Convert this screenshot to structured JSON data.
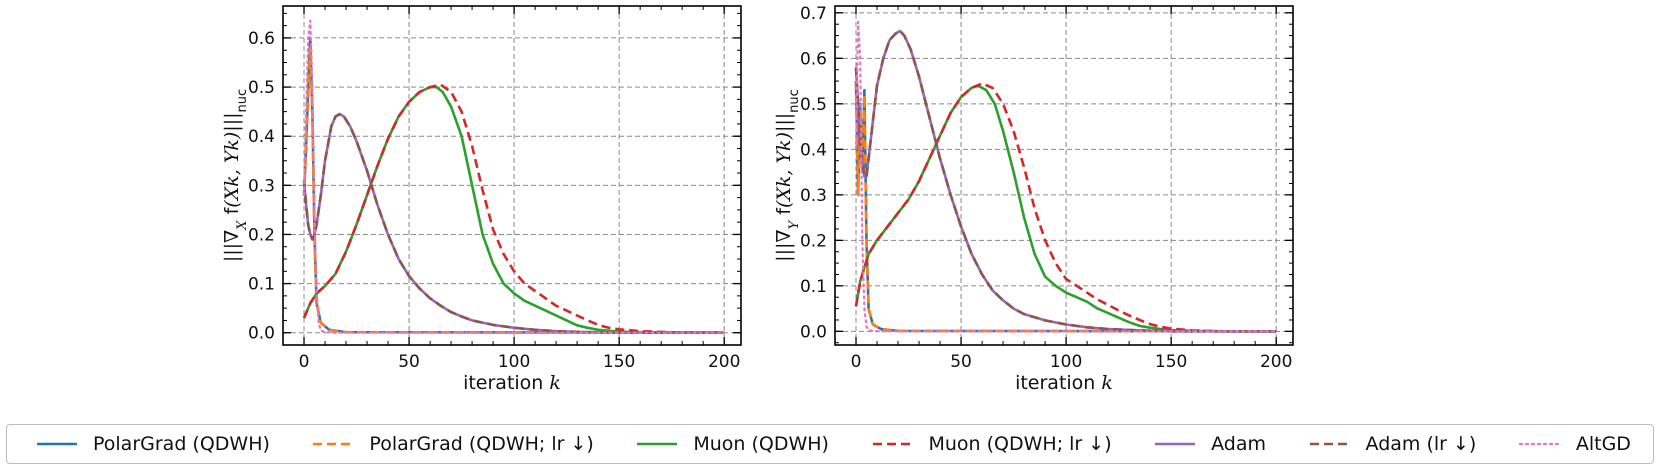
{
  "chart_data": [
    {
      "type": "line",
      "panel": "left",
      "ylabel": "|||∇_X f(X_k, Y_k)|||_nuc",
      "xlabel": "iteration k",
      "xlim": [
        -10,
        208
      ],
      "ylim": [
        -0.025,
        0.665
      ],
      "xticks": [
        0,
        50,
        100,
        150,
        200
      ],
      "yticks": [
        0.0,
        0.1,
        0.2,
        0.3,
        0.4,
        0.5,
        0.6
      ],
      "xtick_labels": [
        "0",
        "50",
        "100",
        "150",
        "200"
      ],
      "ytick_labels": [
        "0.0",
        "0.1",
        "0.2",
        "0.3",
        "0.4",
        "0.5",
        "0.6"
      ],
      "grid": true,
      "series": [
        {
          "name": "PolarGrad (QDWH)",
          "x": [
            0,
            1,
            2,
            3,
            4,
            5,
            6,
            8,
            12,
            20,
            200
          ],
          "y": [
            0.28,
            0.38,
            0.5,
            0.6,
            0.45,
            0.2,
            0.06,
            0.02,
            0.006,
            0.001,
            0.0
          ]
        },
        {
          "name": "PolarGrad (QDWH; lr ↓)",
          "x": [
            0,
            1,
            2,
            3,
            4,
            5,
            6,
            8,
            12,
            20,
            200
          ],
          "y": [
            0.28,
            0.38,
            0.48,
            0.58,
            0.44,
            0.19,
            0.06,
            0.02,
            0.006,
            0.001,
            0.0
          ]
        },
        {
          "name": "Muon (QDWH)",
          "x": [
            0,
            3,
            6,
            10,
            15,
            20,
            25,
            30,
            35,
            40,
            45,
            50,
            55,
            60,
            63,
            66,
            70,
            75,
            80,
            85,
            90,
            95,
            100,
            105,
            110,
            115,
            120,
            125,
            130,
            135,
            140,
            145,
            150,
            160,
            175,
            200
          ],
          "y": [
            0.03,
            0.06,
            0.08,
            0.095,
            0.12,
            0.165,
            0.22,
            0.28,
            0.34,
            0.395,
            0.44,
            0.47,
            0.49,
            0.5,
            0.5,
            0.49,
            0.46,
            0.4,
            0.3,
            0.2,
            0.14,
            0.1,
            0.08,
            0.065,
            0.055,
            0.045,
            0.035,
            0.025,
            0.015,
            0.01,
            0.006,
            0.004,
            0.002,
            0.001,
            0.0,
            0.0
          ]
        },
        {
          "name": "Muon (QDWH; lr ↓)",
          "x": [
            0,
            3,
            6,
            10,
            15,
            20,
            25,
            30,
            35,
            40,
            45,
            50,
            55,
            60,
            65,
            70,
            75,
            80,
            85,
            90,
            95,
            100,
            105,
            110,
            115,
            120,
            125,
            130,
            135,
            140,
            145,
            150,
            160,
            175,
            200
          ],
          "y": [
            0.03,
            0.06,
            0.08,
            0.095,
            0.12,
            0.165,
            0.22,
            0.28,
            0.34,
            0.395,
            0.44,
            0.47,
            0.49,
            0.5,
            0.505,
            0.49,
            0.45,
            0.38,
            0.29,
            0.21,
            0.16,
            0.125,
            0.1,
            0.085,
            0.07,
            0.055,
            0.045,
            0.035,
            0.025,
            0.016,
            0.01,
            0.007,
            0.003,
            0.001,
            0.0
          ]
        },
        {
          "name": "Adam",
          "x": [
            0,
            1,
            2,
            3,
            4,
            5,
            6,
            8,
            10,
            13,
            15,
            17,
            19,
            22,
            25,
            30,
            35,
            40,
            45,
            50,
            55,
            60,
            65,
            70,
            75,
            80,
            90,
            100,
            110,
            120,
            135,
            150,
            200
          ],
          "y": [
            0.31,
            0.26,
            0.22,
            0.2,
            0.19,
            0.2,
            0.22,
            0.28,
            0.35,
            0.42,
            0.44,
            0.445,
            0.44,
            0.42,
            0.39,
            0.33,
            0.26,
            0.2,
            0.15,
            0.115,
            0.09,
            0.07,
            0.055,
            0.042,
            0.033,
            0.025,
            0.016,
            0.01,
            0.006,
            0.003,
            0.001,
            0.0,
            0.0
          ]
        },
        {
          "name": "Adam (lr ↓)",
          "x": [
            0,
            1,
            2,
            3,
            4,
            5,
            6,
            8,
            10,
            13,
            15,
            17,
            19,
            22,
            25,
            30,
            35,
            40,
            45,
            50,
            55,
            60,
            65,
            70,
            75,
            80,
            90,
            100,
            110,
            120,
            135,
            150,
            200
          ],
          "y": [
            0.31,
            0.26,
            0.22,
            0.2,
            0.19,
            0.2,
            0.22,
            0.28,
            0.35,
            0.42,
            0.44,
            0.445,
            0.44,
            0.42,
            0.39,
            0.33,
            0.26,
            0.2,
            0.15,
            0.115,
            0.09,
            0.07,
            0.055,
            0.042,
            0.033,
            0.025,
            0.016,
            0.01,
            0.006,
            0.003,
            0.001,
            0.0,
            0.0
          ]
        },
        {
          "name": "AltGD",
          "x": [
            0,
            1,
            2,
            3,
            4,
            5,
            6,
            7,
            8,
            10,
            15,
            200
          ],
          "y": [
            0.28,
            0.45,
            0.6,
            0.635,
            0.5,
            0.25,
            0.08,
            0.02,
            0.005,
            0.001,
            0.0,
            0.0
          ]
        }
      ]
    },
    {
      "type": "line",
      "panel": "right",
      "ylabel": "|||∇_Y f(X_k, Y_k)|||_nuc",
      "xlabel": "iteration k",
      "xlim": [
        -10,
        208
      ],
      "ylim": [
        -0.03,
        0.715
      ],
      "xticks": [
        0,
        50,
        100,
        150,
        200
      ],
      "yticks": [
        0.0,
        0.1,
        0.2,
        0.3,
        0.4,
        0.5,
        0.6,
        0.7
      ],
      "xtick_labels": [
        "0",
        "50",
        "100",
        "150",
        "200"
      ],
      "ytick_labels": [
        "0.0",
        "0.1",
        "0.2",
        "0.3",
        "0.4",
        "0.5",
        "0.6",
        "0.7"
      ],
      "grid": true,
      "series": [
        {
          "name": "PolarGrad (QDWH)",
          "x": [
            0,
            1,
            2,
            3,
            4,
            5,
            6,
            8,
            12,
            20,
            200
          ],
          "y": [
            0.55,
            0.3,
            0.5,
            0.35,
            0.53,
            0.2,
            0.05,
            0.015,
            0.005,
            0.001,
            0.0
          ]
        },
        {
          "name": "PolarGrad (QDWH; lr ↓)",
          "x": [
            0,
            1,
            2,
            3,
            4,
            5,
            6,
            8,
            12,
            20,
            200
          ],
          "y": [
            0.55,
            0.3,
            0.48,
            0.35,
            0.52,
            0.2,
            0.05,
            0.015,
            0.005,
            0.001,
            0.0
          ]
        },
        {
          "name": "Muon (QDWH)",
          "x": [
            0,
            2,
            4,
            6,
            10,
            15,
            20,
            25,
            30,
            35,
            40,
            45,
            50,
            55,
            58,
            62,
            66,
            70,
            75,
            80,
            85,
            90,
            95,
            100,
            105,
            110,
            115,
            120,
            125,
            130,
            135,
            140,
            145,
            150,
            160,
            175,
            200
          ],
          "y": [
            0.055,
            0.11,
            0.14,
            0.17,
            0.2,
            0.23,
            0.26,
            0.29,
            0.33,
            0.38,
            0.43,
            0.48,
            0.515,
            0.535,
            0.54,
            0.53,
            0.5,
            0.44,
            0.35,
            0.25,
            0.17,
            0.12,
            0.1,
            0.085,
            0.075,
            0.065,
            0.05,
            0.04,
            0.03,
            0.02,
            0.012,
            0.008,
            0.005,
            0.003,
            0.001,
            0.0,
            0.0
          ]
        },
        {
          "name": "Muon (QDWH; lr ↓)",
          "x": [
            0,
            2,
            4,
            6,
            10,
            15,
            20,
            25,
            30,
            35,
            40,
            45,
            50,
            55,
            60,
            65,
            70,
            75,
            80,
            85,
            90,
            95,
            100,
            105,
            110,
            115,
            120,
            125,
            130,
            135,
            140,
            145,
            150,
            160,
            175,
            200
          ],
          "y": [
            0.055,
            0.11,
            0.14,
            0.17,
            0.2,
            0.23,
            0.26,
            0.29,
            0.33,
            0.38,
            0.43,
            0.48,
            0.515,
            0.535,
            0.545,
            0.535,
            0.5,
            0.44,
            0.36,
            0.27,
            0.2,
            0.15,
            0.115,
            0.1,
            0.085,
            0.07,
            0.058,
            0.046,
            0.035,
            0.025,
            0.016,
            0.01,
            0.006,
            0.002,
            0.0,
            0.0
          ]
        },
        {
          "name": "Adam",
          "x": [
            0,
            1,
            2,
            3,
            4,
            5,
            6,
            8,
            10,
            13,
            16,
            19,
            21,
            23,
            26,
            30,
            35,
            40,
            45,
            50,
            55,
            60,
            65,
            70,
            75,
            80,
            90,
            100,
            110,
            120,
            135,
            150,
            200
          ],
          "y": [
            0.58,
            0.5,
            0.42,
            0.37,
            0.34,
            0.34,
            0.38,
            0.46,
            0.54,
            0.6,
            0.64,
            0.655,
            0.66,
            0.65,
            0.62,
            0.56,
            0.47,
            0.38,
            0.3,
            0.23,
            0.17,
            0.125,
            0.09,
            0.068,
            0.05,
            0.038,
            0.024,
            0.015,
            0.009,
            0.005,
            0.002,
            0.0,
            0.0
          ]
        },
        {
          "name": "Adam (lr ↓)",
          "x": [
            0,
            1,
            2,
            3,
            4,
            5,
            6,
            8,
            10,
            13,
            16,
            19,
            21,
            23,
            26,
            30,
            35,
            40,
            45,
            50,
            55,
            60,
            65,
            70,
            75,
            80,
            90,
            100,
            110,
            120,
            135,
            150,
            200
          ],
          "y": [
            0.58,
            0.5,
            0.42,
            0.37,
            0.34,
            0.34,
            0.38,
            0.46,
            0.54,
            0.6,
            0.64,
            0.655,
            0.66,
            0.65,
            0.62,
            0.56,
            0.47,
            0.38,
            0.3,
            0.23,
            0.17,
            0.125,
            0.09,
            0.068,
            0.05,
            0.038,
            0.024,
            0.015,
            0.009,
            0.005,
            0.002,
            0.0,
            0.0
          ]
        },
        {
          "name": "AltGD",
          "x": [
            0,
            1,
            2,
            3,
            4,
            5,
            6,
            8,
            12,
            200
          ],
          "y": [
            0.4,
            0.68,
            0.6,
            0.2,
            0.05,
            0.01,
            0.003,
            0.001,
            0.0,
            0.0
          ]
        }
      ]
    }
  ],
  "legend": [
    {
      "label": "PolarGrad (QDWH)",
      "color": "#1f77b4",
      "style": "solid"
    },
    {
      "label": "PolarGrad (QDWH; lr ↓)",
      "color": "#ff7f0e",
      "style": "dashed"
    },
    {
      "label": "Muon (QDWH)",
      "color": "#2ca02c",
      "style": "solid"
    },
    {
      "label": "Muon (QDWH; lr ↓)",
      "color": "#d62728",
      "style": "dashed"
    },
    {
      "label": "Adam",
      "color": "#9467bd",
      "style": "solid"
    },
    {
      "label": "Adam (lr ↓)",
      "color": "#8c564b",
      "style": "dashed"
    },
    {
      "label": "AltGD",
      "color": "#e377c2",
      "style": "dotted"
    }
  ]
}
